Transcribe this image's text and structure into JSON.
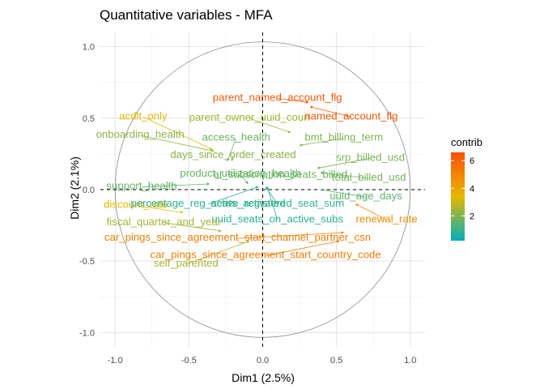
{
  "chart_data": {
    "type": "scatter",
    "subtype": "variable-correlation-circle",
    "title": "Quantitative variables - MFA",
    "xlabel": "Dim1 (2.5%)",
    "ylabel": "Dim2 (2.1%)",
    "xlim": [
      -1.1,
      1.1
    ],
    "ylim": [
      -1.1,
      1.1
    ],
    "xticks": [
      "-1.0",
      "-0.5",
      "0.0",
      "0.5",
      "1.0"
    ],
    "yticks": [
      "-1.0",
      "-0.5",
      "0.0",
      "0.5",
      "1.0"
    ],
    "grid": true,
    "legend": {
      "title": "contrib",
      "position": "right",
      "ticks": [
        "2",
        "4",
        "6"
      ],
      "tick_values": [
        2,
        4,
        6
      ],
      "range": [
        0.2,
        6.6
      ]
    },
    "color_scale": [
      "#00AFBB",
      "#E7B800",
      "#FC4E07"
    ],
    "variables": [
      {
        "label": "parent_named_account_flg",
        "x": 0.31,
        "y": 0.61,
        "lx": 0.1,
        "ly": 0.65,
        "contrib": 6.3
      },
      {
        "label": "named_account_flg",
        "x": 0.32,
        "y": 0.58,
        "lx": 0.6,
        "ly": 0.52,
        "contrib": 6.2
      },
      {
        "label": "acdlt_only",
        "x": -0.34,
        "y": 0.28,
        "lx": -0.81,
        "ly": 0.52,
        "contrib": 3.3
      },
      {
        "label": "parent_owner_uuid_coun",
        "x": 0.19,
        "y": 0.4,
        "lx": -0.09,
        "ly": 0.51,
        "contrib": 2.5
      },
      {
        "label": "onboarding_health",
        "x": -0.33,
        "y": 0.27,
        "lx": -0.83,
        "ly": 0.39,
        "contrib": 2.2
      },
      {
        "label": "access_health",
        "x": -0.24,
        "y": 0.2,
        "lx": -0.18,
        "ly": 0.37,
        "contrib": 1.7
      },
      {
        "label": "bmt_billing_term",
        "x": 0.25,
        "y": 0.31,
        "lx": 0.55,
        "ly": 0.37,
        "contrib": 2.0
      },
      {
        "label": "days_since_order_created",
        "x": -0.21,
        "y": 0.2,
        "lx": -0.2,
        "ly": 0.25,
        "contrib": 2.1
      },
      {
        "label": "srp_billed_usd",
        "x": 0.37,
        "y": 0.15,
        "lx": 0.73,
        "ly": 0.23,
        "contrib": 1.9
      },
      {
        "label": "product_utilization_health",
        "x": -0.1,
        "y": 0.04,
        "lx": -0.15,
        "ly": 0.12,
        "contrib": 1.6
      },
      {
        "label": "at_subscription_seats_billed",
        "x": 0.21,
        "y": 0.08,
        "lx": 0.12,
        "ly": 0.11,
        "contrib": 1.7
      },
      {
        "label": "total_billed_usd",
        "x": 0.39,
        "y": 0.12,
        "lx": 0.72,
        "ly": 0.09,
        "contrib": 1.8
      },
      {
        "label": "support_health",
        "x": -0.36,
        "y": 0.04,
        "lx": -0.82,
        "ly": 0.03,
        "contrib": 1.6
      },
      {
        "label": "uuid_age_days",
        "x": 0.39,
        "y": 0.0,
        "lx": 0.7,
        "ly": -0.04,
        "contrib": 1.5
      },
      {
        "label": "discount_rate",
        "x": -0.54,
        "y": -0.16,
        "lx": -0.86,
        "ly": -0.1,
        "contrib": 3.4
      },
      {
        "label": "percentage_reg_seats_activated",
        "x": -0.03,
        "y": 0.02,
        "lx": -0.37,
        "ly": -0.09,
        "contrib": 0.8
      },
      {
        "label": "active_registered_seat_sum",
        "x": 0.02,
        "y": 0.02,
        "lx": 0.1,
        "ly": -0.09,
        "contrib": 0.9
      },
      {
        "label": "renewal_rate",
        "x": 0.63,
        "y": -0.1,
        "lx": 0.84,
        "ly": -0.2,
        "contrib": 4.7
      },
      {
        "label": "uuid_seats_on_active_subs",
        "x": 0.03,
        "y": 0.02,
        "lx": 0.1,
        "ly": -0.2,
        "contrib": 0.8
      },
      {
        "label": "fiscal_quarter_and_year",
        "x": -0.28,
        "y": -0.29,
        "lx": -0.67,
        "ly": -0.22,
        "contrib": 2.5
      },
      {
        "label": "car_pings_since_agreement_start_channel_partner_csn",
        "x": 0.55,
        "y": -0.3,
        "lx": -0.17,
        "ly": -0.33,
        "contrib": 5.2
      },
      {
        "label": "car_pings_since_agreement_start_country_code",
        "x": 0.52,
        "y": -0.36,
        "lx": 0.02,
        "ly": -0.45,
        "contrib": 5.2
      },
      {
        "label": "self_parented",
        "x": -0.09,
        "y": -0.36,
        "lx": -0.52,
        "ly": -0.51,
        "contrib": 2.5
      }
    ]
  }
}
